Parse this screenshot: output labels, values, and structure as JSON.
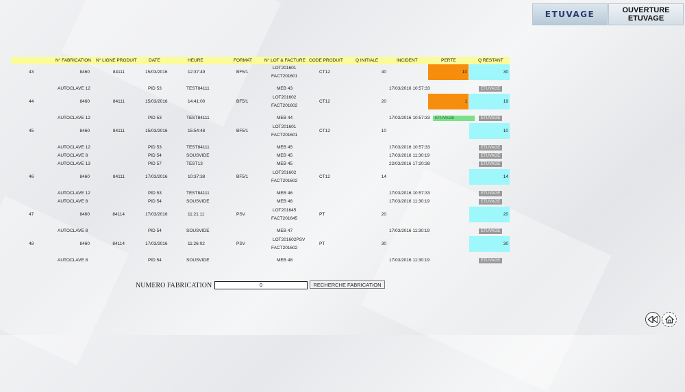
{
  "header_buttons": {
    "etuvage": "ETUVAGE",
    "ouverture_line1": "OUVERTURE",
    "ouverture_line2": "ETUVAGE"
  },
  "columns": {
    "id": "",
    "fabrication": "N° FABRICATION",
    "ligne": "N° LIGNE PRODUIT",
    "date": "DATE",
    "heure": "HEURE",
    "format": "FORMAT",
    "lot": "N° LOT & FACTURE",
    "code": "CODE PRODUIT",
    "qinit": "Q INITIALE",
    "incident": "INCIDENT",
    "perte": "PERTE",
    "qrest": "Q RESTANT"
  },
  "rows": [
    {
      "id": "43",
      "fabrication": "8460",
      "ligne": "84111",
      "date": "15/03/2016",
      "heure": "12:37:49",
      "format": "BF5/1",
      "lot": "LOT201601",
      "facture": "FACT201601",
      "code": "CT12",
      "qinit": "40",
      "perte": "10",
      "qrest": "30",
      "subs": [
        {
          "autoclave": "AUTOCLAVE 12",
          "pid": "PID 53",
          "test": "TEST84111",
          "meb": "MEB 43",
          "incident": "17/03/2016 10:57:33",
          "badge": "ETUVAGE",
          "green": ""
        }
      ]
    },
    {
      "id": "44",
      "fabrication": "8460",
      "ligne": "84111",
      "date": "15/03/2016",
      "heure": "14:41:00",
      "format": "BF5/1",
      "lot": "LOT201602",
      "facture": "FACT201602",
      "code": "CT12",
      "qinit": "20",
      "perte": "1",
      "qrest": "19",
      "subs": [
        {
          "autoclave": "AUTOCLAVE 12",
          "pid": "PID 53",
          "test": "TEST84111",
          "meb": "MEB 44",
          "incident": "17/03/2016 10:57:33",
          "badge": "ETUVAGE",
          "green": "ETUVAGE"
        }
      ]
    },
    {
      "id": "45",
      "fabrication": "8460",
      "ligne": "84111",
      "date": "15/03/2016",
      "heure": "15:54:48",
      "format": "BF5/1",
      "lot": "LOT201601",
      "facture": "FACT201601",
      "code": "CT12",
      "qinit": "10",
      "perte": "",
      "qrest": "10",
      "subs": [
        {
          "autoclave": "AUTOCLAVE 12",
          "pid": "PID 53",
          "test": "TEST84111",
          "meb": "MEB 45",
          "incident": "17/03/2016 10:57:33",
          "badge": "ETUVAGE",
          "green": ""
        },
        {
          "autoclave": "AUTOCLAVE 8",
          "pid": "PID 54",
          "test": "SOUSVIDE",
          "meb": "MEB 45",
          "incident": "17/03/2016 11:30:19",
          "badge": "ETUVAGE",
          "green": ""
        },
        {
          "autoclave": "AUTOCLAVE 13",
          "pid": "PID 57",
          "test": "TEST13",
          "meb": "MEB 45",
          "incident": "22/03/2016 17:20:38",
          "badge": "ETUVAGE",
          "green": ""
        }
      ]
    },
    {
      "id": "46",
      "fabrication": "8460",
      "ligne": "84111",
      "date": "17/03/2016",
      "heure": "10:37:38",
      "format": "BF5/1",
      "lot": "LOT201602",
      "facture": "FACT201602",
      "code": "CT12",
      "qinit": "14",
      "perte": "",
      "qrest": "14",
      "subs": [
        {
          "autoclave": "AUTOCLAVE 12",
          "pid": "PID 53",
          "test": "TEST84111",
          "meb": "MEB 46",
          "incident": "17/03/2016 10:57:33",
          "badge": "ETUVAGE",
          "green": ""
        },
        {
          "autoclave": "AUTOCLAVE 8",
          "pid": "PID 54",
          "test": "SOUSVIDE",
          "meb": "MEB 46",
          "incident": "17/03/2016 11:30:19",
          "badge": "ETUVAGE",
          "green": ""
        }
      ]
    },
    {
      "id": "47",
      "fabrication": "8460",
      "ligne": "84114",
      "date": "17/03/2016",
      "heure": "11:21:11",
      "format": "PSV",
      "lot": "LOT201645",
      "facture": "FACT201645",
      "code": "PT",
      "qinit": "20",
      "perte": "",
      "qrest": "20",
      "subs": [
        {
          "autoclave": "AUTOCLAVE 8",
          "pid": "PID 54",
          "test": "SOUSVIDE",
          "meb": "MEB 47",
          "incident": "17/03/2016 11:30:19",
          "badge": "ETUVAGE",
          "green": ""
        }
      ]
    },
    {
      "id": "48",
      "fabrication": "8460",
      "ligne": "84114",
      "date": "17/03/2016",
      "heure": "11:26:02",
      "format": "PSV",
      "lot": "LOT201602PSV",
      "facture": "FACT201602",
      "code": "PT",
      "qinit": "30",
      "perte": "",
      "qrest": "30",
      "subs": [
        {
          "autoclave": "AUTOCLAVE 8",
          "pid": "PID 54",
          "test": "SOUSVIDE",
          "meb": "MEB 48",
          "incident": "17/03/2016 11:30:19",
          "badge": "ETUVAGE",
          "green": ""
        }
      ]
    }
  ],
  "search": {
    "label": "NUMERO FABRICATION",
    "value": "0",
    "button": "RECHERCHE FABRICATION"
  },
  "icons": {
    "back": "rewind-icon",
    "home": "home-icon"
  },
  "colors": {
    "header_bg": "#fbfb9a",
    "perte_bg": "#f78d0d",
    "qrest_bg": "#9ef7fb",
    "badge_grey": "#9a9a9a",
    "badge_green": "#7ce08a"
  }
}
